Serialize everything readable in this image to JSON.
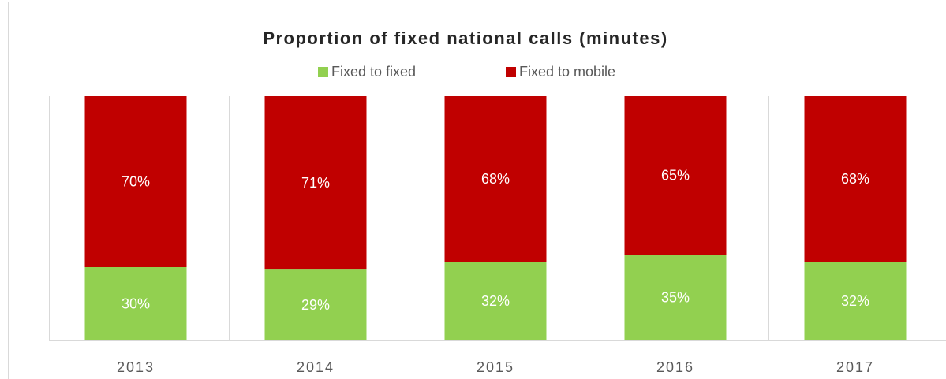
{
  "chart_data": {
    "type": "stacked_bar",
    "title": "Proportion of fixed national calls (minutes)",
    "categories": [
      "2013",
      "2014",
      "2015",
      "2016",
      "2017"
    ],
    "series": [
      {
        "name": "Fixed to fixed",
        "color": "#92d050",
        "values": [
          30,
          29,
          32,
          35,
          32
        ],
        "value_labels": [
          "30%",
          "29%",
          "32%",
          "35%",
          "32%"
        ]
      },
      {
        "name": "Fixed to mobile",
        "color": "#c00000",
        "values": [
          70,
          71,
          68,
          65,
          68
        ],
        "value_labels": [
          "70%",
          "71%",
          "68%",
          "65%",
          "68%"
        ]
      }
    ],
    "ylim": [
      0,
      100
    ],
    "grid": true,
    "legend": "top"
  }
}
